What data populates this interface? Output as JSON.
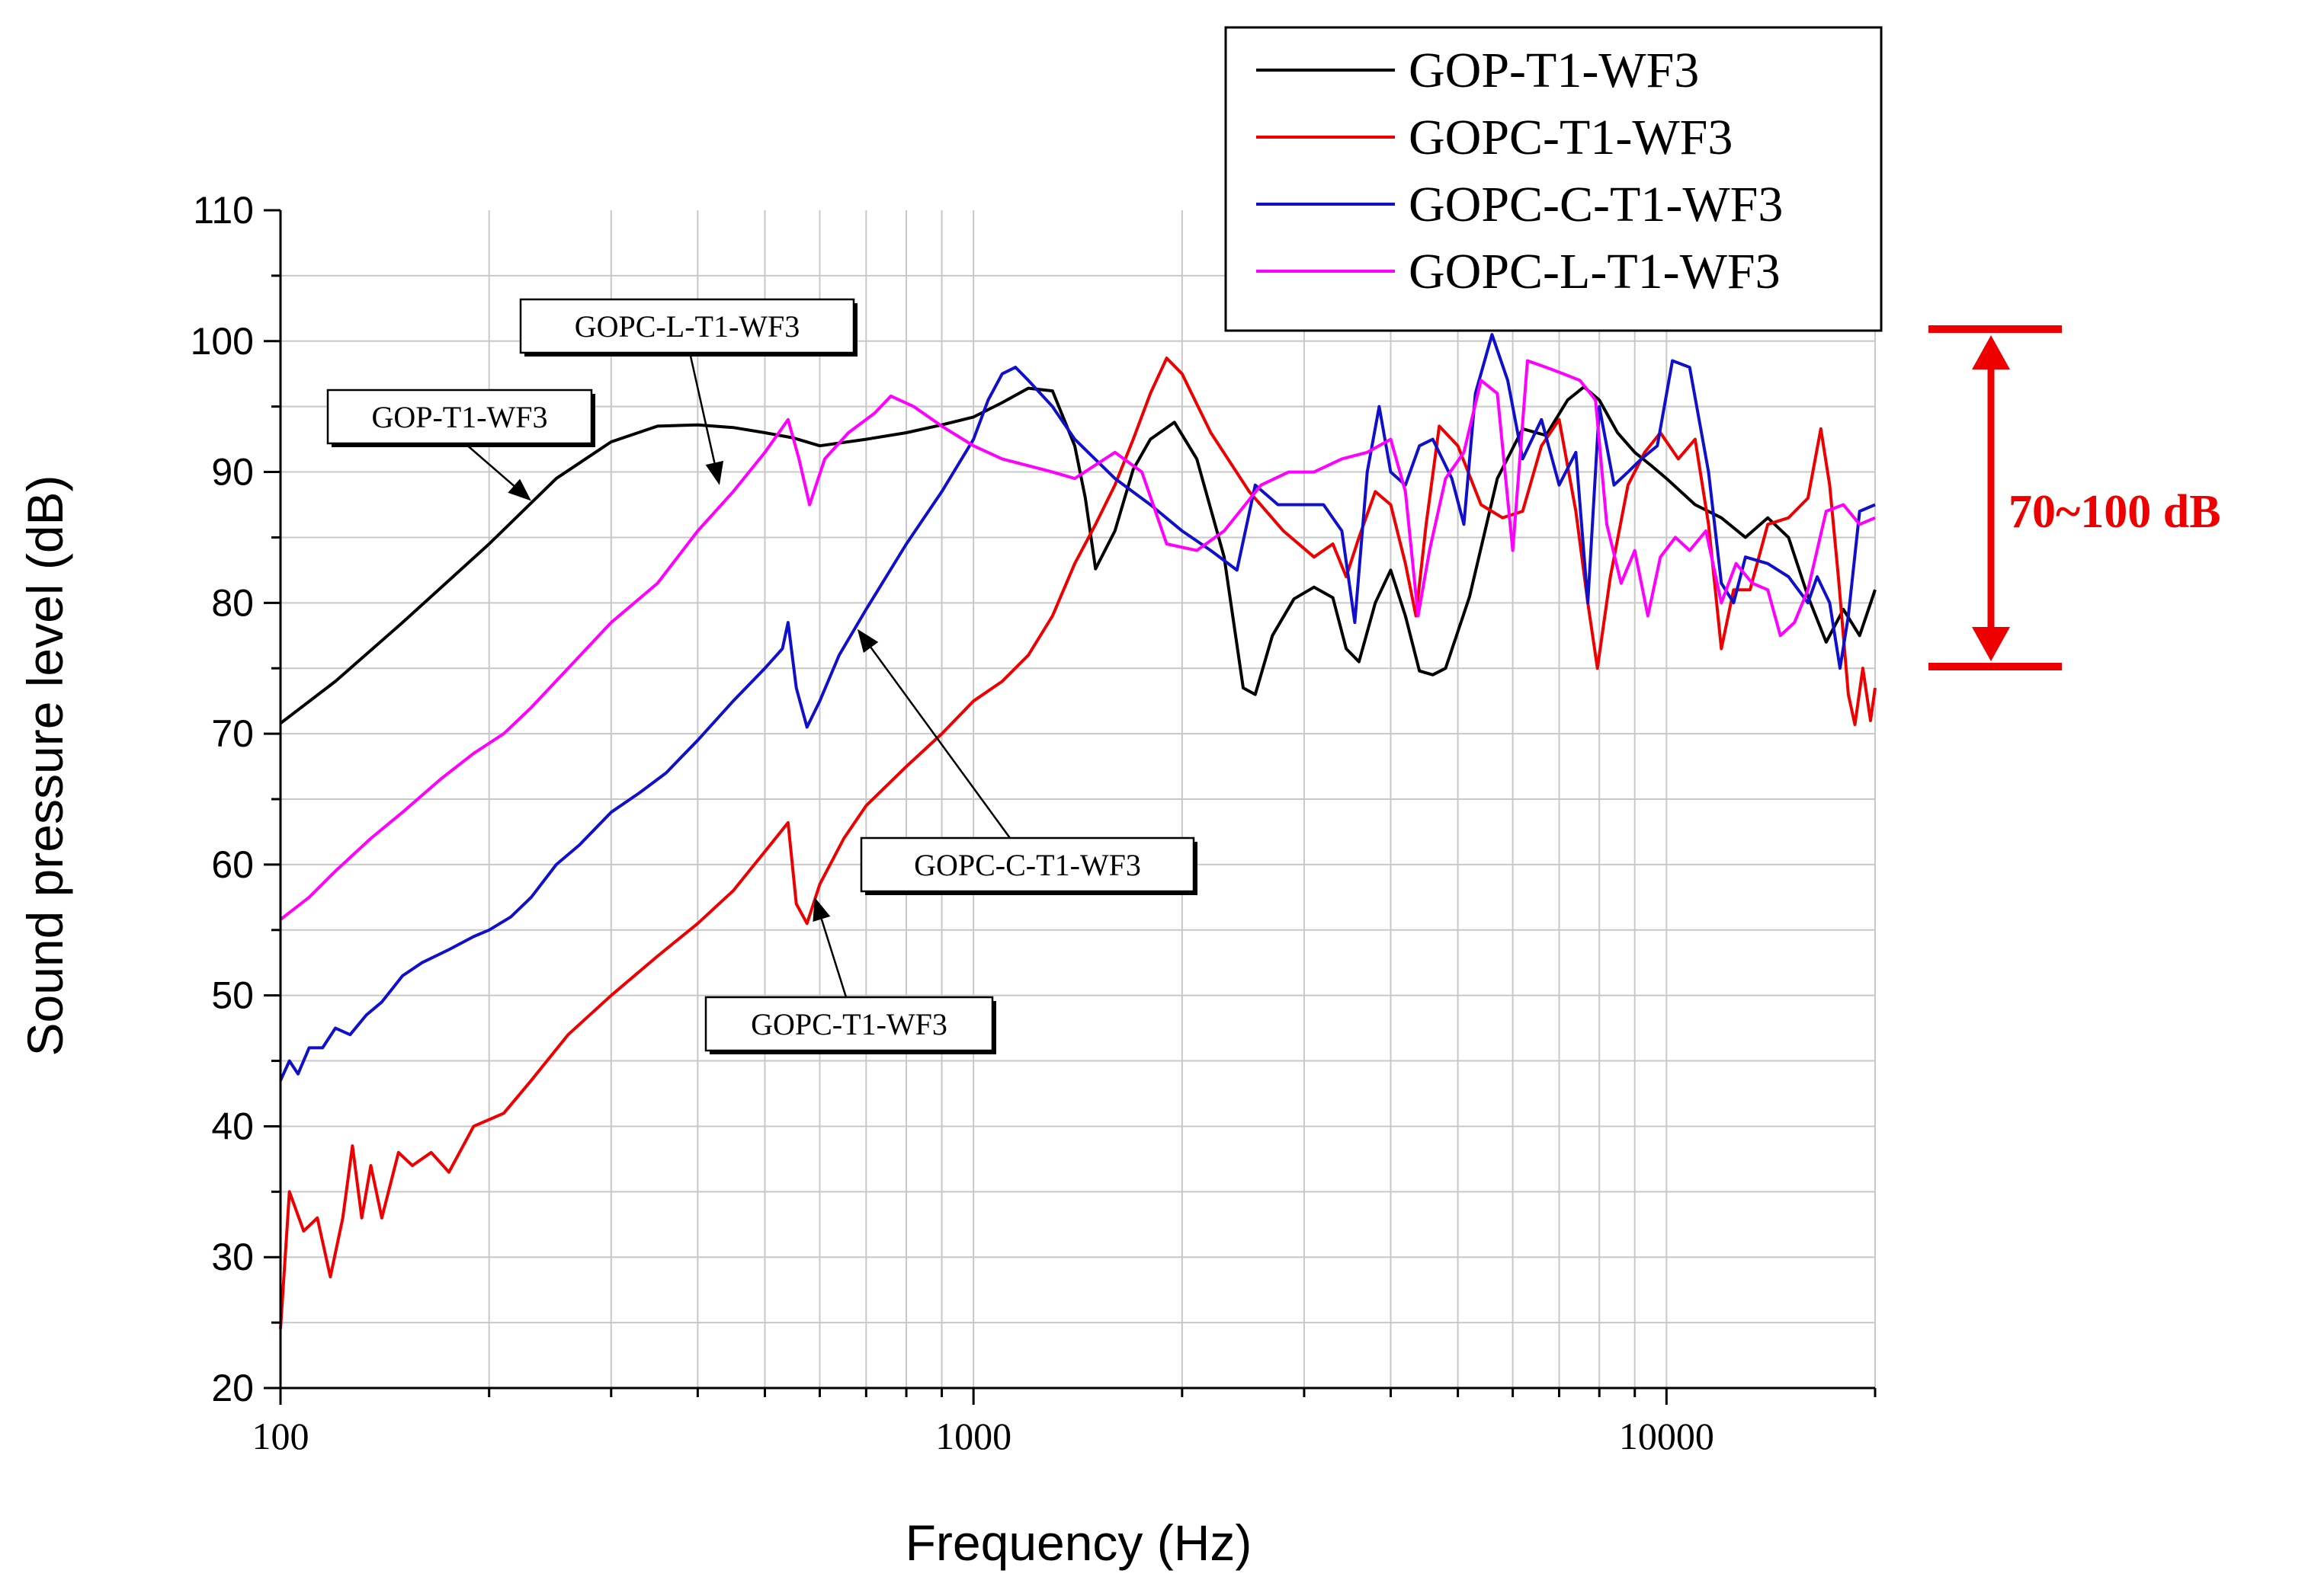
{
  "chart_data": {
    "type": "line",
    "xlabel": "Frequency (Hz)",
    "ylabel": "Sound pressure level (dB)",
    "xscale": "log",
    "xlim": [
      100,
      20000
    ],
    "ylim": [
      20,
      110
    ],
    "xticks": [
      "100",
      "1000",
      "10000"
    ],
    "yticks": [
      "20",
      "30",
      "40",
      "50",
      "60",
      "70",
      "80",
      "90",
      "100",
      "110"
    ],
    "grid": true,
    "legend_position": "top-right",
    "series": [
      {
        "name": "GOP-T1-WF3",
        "color": "#000000",
        "points": [
          [
            100,
            70.8
          ],
          [
            120,
            74
          ],
          [
            150,
            78.5
          ],
          [
            200,
            84.5
          ],
          [
            250,
            89.5
          ],
          [
            300,
            92.3
          ],
          [
            350,
            93.5
          ],
          [
            400,
            93.6
          ],
          [
            450,
            93.4
          ],
          [
            500,
            93
          ],
          [
            550,
            92.6
          ],
          [
            600,
            92
          ],
          [
            700,
            92.5
          ],
          [
            800,
            93
          ],
          [
            900,
            93.6
          ],
          [
            1000,
            94.2
          ],
          [
            1100,
            95.3
          ],
          [
            1200,
            96.4
          ],
          [
            1300,
            96.2
          ],
          [
            1400,
            92
          ],
          [
            1450,
            88
          ],
          [
            1500,
            82.6
          ],
          [
            1600,
            85.5
          ],
          [
            1700,
            90.2
          ],
          [
            1800,
            92.5
          ],
          [
            1950,
            93.8
          ],
          [
            2100,
            91
          ],
          [
            2300,
            83.5
          ],
          [
            2450,
            73.5
          ],
          [
            2550,
            73
          ],
          [
            2700,
            77.5
          ],
          [
            2900,
            80.3
          ],
          [
            3100,
            81.2
          ],
          [
            3300,
            80.4
          ],
          [
            3450,
            76.5
          ],
          [
            3600,
            75.5
          ],
          [
            3800,
            80
          ],
          [
            4000,
            82.5
          ],
          [
            4200,
            79
          ],
          [
            4400,
            74.8
          ],
          [
            4600,
            74.5
          ],
          [
            4800,
            75
          ],
          [
            5200,
            80.5
          ],
          [
            5700,
            89.5
          ],
          [
            6200,
            93.3
          ],
          [
            6700,
            92.8
          ],
          [
            7200,
            95.5
          ],
          [
            7600,
            96.5
          ],
          [
            8000,
            95.5
          ],
          [
            8500,
            93
          ],
          [
            9000,
            91.5
          ],
          [
            9500,
            90.5
          ],
          [
            10000,
            89.5
          ],
          [
            11000,
            87.5
          ],
          [
            12000,
            86.5
          ],
          [
            13000,
            85
          ],
          [
            14000,
            86.5
          ],
          [
            15000,
            85
          ],
          [
            16000,
            80.5
          ],
          [
            17000,
            77
          ],
          [
            18000,
            79.5
          ],
          [
            19000,
            77.5
          ],
          [
            20000,
            81
          ]
        ]
      },
      {
        "name": "GOPC-T1-WF3",
        "color": "#ee0000",
        "points": [
          [
            100,
            24.5
          ],
          [
            103,
            35
          ],
          [
            108,
            32
          ],
          [
            113,
            33
          ],
          [
            118,
            28.5
          ],
          [
            123,
            33
          ],
          [
            127,
            38.5
          ],
          [
            131,
            33
          ],
          [
            135,
            37
          ],
          [
            140,
            33
          ],
          [
            148,
            38
          ],
          [
            155,
            37
          ],
          [
            165,
            38
          ],
          [
            175,
            36.5
          ],
          [
            190,
            40
          ],
          [
            210,
            41
          ],
          [
            230,
            43.5
          ],
          [
            260,
            47
          ],
          [
            300,
            50
          ],
          [
            350,
            53
          ],
          [
            400,
            55.5
          ],
          [
            450,
            58
          ],
          [
            500,
            61
          ],
          [
            540,
            63.2
          ],
          [
            555,
            57
          ],
          [
            575,
            55.5
          ],
          [
            600,
            58.5
          ],
          [
            650,
            62
          ],
          [
            700,
            64.5
          ],
          [
            800,
            67.5
          ],
          [
            900,
            70
          ],
          [
            1000,
            72.5
          ],
          [
            1100,
            74
          ],
          [
            1200,
            76
          ],
          [
            1300,
            79
          ],
          [
            1400,
            83
          ],
          [
            1500,
            86
          ],
          [
            1600,
            89
          ],
          [
            1700,
            92.5
          ],
          [
            1800,
            96
          ],
          [
            1900,
            98.7
          ],
          [
            2000,
            97.5
          ],
          [
            2200,
            93
          ],
          [
            2500,
            88.5
          ],
          [
            2800,
            85.5
          ],
          [
            3100,
            83.5
          ],
          [
            3300,
            84.5
          ],
          [
            3450,
            82
          ],
          [
            3600,
            85
          ],
          [
            3800,
            88.5
          ],
          [
            4000,
            87.5
          ],
          [
            4200,
            83
          ],
          [
            4350,
            79
          ],
          [
            4500,
            86
          ],
          [
            4700,
            93.5
          ],
          [
            5000,
            92
          ],
          [
            5400,
            87.5
          ],
          [
            5800,
            86.5
          ],
          [
            6200,
            87
          ],
          [
            6600,
            92
          ],
          [
            7000,
            94
          ],
          [
            7400,
            87
          ],
          [
            7700,
            80
          ],
          [
            7950,
            75
          ],
          [
            8300,
            82
          ],
          [
            8800,
            89
          ],
          [
            9300,
            91.5
          ],
          [
            9800,
            93
          ],
          [
            10400,
            91
          ],
          [
            11000,
            92.5
          ],
          [
            11500,
            86
          ],
          [
            12000,
            76.5
          ],
          [
            12500,
            81
          ],
          [
            13200,
            81
          ],
          [
            14000,
            86
          ],
          [
            15000,
            86.5
          ],
          [
            16000,
            88
          ],
          [
            16700,
            93.3
          ],
          [
            17200,
            89
          ],
          [
            17700,
            82
          ],
          [
            18300,
            73
          ],
          [
            18700,
            70.7
          ],
          [
            19200,
            75
          ],
          [
            19700,
            71
          ],
          [
            20000,
            73.5
          ]
        ]
      },
      {
        "name": "GOPC-C-T1-WF3",
        "color": "#1010cc",
        "points": [
          [
            100,
            43.5
          ],
          [
            103,
            45
          ],
          [
            106,
            44
          ],
          [
            110,
            46
          ],
          [
            115,
            46
          ],
          [
            120,
            47.5
          ],
          [
            126,
            47
          ],
          [
            133,
            48.5
          ],
          [
            140,
            49.5
          ],
          [
            150,
            51.5
          ],
          [
            160,
            52.5
          ],
          [
            175,
            53.5
          ],
          [
            190,
            54.5
          ],
          [
            200,
            55
          ],
          [
            215,
            56
          ],
          [
            230,
            57.5
          ],
          [
            250,
            60
          ],
          [
            270,
            61.5
          ],
          [
            300,
            64
          ],
          [
            330,
            65.5
          ],
          [
            360,
            67
          ],
          [
            400,
            69.5
          ],
          [
            450,
            72.5
          ],
          [
            500,
            75
          ],
          [
            530,
            76.5
          ],
          [
            540,
            78.5
          ],
          [
            555,
            73.5
          ],
          [
            575,
            70.5
          ],
          [
            600,
            72.5
          ],
          [
            640,
            76
          ],
          [
            700,
            79.5
          ],
          [
            800,
            84.5
          ],
          [
            900,
            88.5
          ],
          [
            1000,
            92.5
          ],
          [
            1050,
            95.5
          ],
          [
            1100,
            97.5
          ],
          [
            1150,
            98
          ],
          [
            1200,
            97
          ],
          [
            1300,
            95
          ],
          [
            1400,
            92.5
          ],
          [
            1600,
            89.5
          ],
          [
            1800,
            87.5
          ],
          [
            2000,
            85.5
          ],
          [
            2200,
            84
          ],
          [
            2400,
            82.5
          ],
          [
            2550,
            89
          ],
          [
            2750,
            87.5
          ],
          [
            3000,
            87.5
          ],
          [
            3200,
            87.5
          ],
          [
            3400,
            85.5
          ],
          [
            3550,
            78.5
          ],
          [
            3700,
            90
          ],
          [
            3850,
            95
          ],
          [
            4000,
            90
          ],
          [
            4200,
            89
          ],
          [
            4400,
            92
          ],
          [
            4600,
            92.5
          ],
          [
            4900,
            89.5
          ],
          [
            5100,
            86
          ],
          [
            5300,
            96
          ],
          [
            5600,
            100.5
          ],
          [
            5900,
            97
          ],
          [
            6200,
            91
          ],
          [
            6600,
            94
          ],
          [
            7000,
            89
          ],
          [
            7400,
            91.5
          ],
          [
            7700,
            80
          ],
          [
            8000,
            95
          ],
          [
            8400,
            89
          ],
          [
            8800,
            90
          ],
          [
            9200,
            91
          ],
          [
            9700,
            92
          ],
          [
            10200,
            98.5
          ],
          [
            10800,
            98
          ],
          [
            11500,
            90
          ],
          [
            12000,
            81.5
          ],
          [
            12500,
            80
          ],
          [
            13000,
            83.5
          ],
          [
            14000,
            83
          ],
          [
            15000,
            82
          ],
          [
            16000,
            80
          ],
          [
            16500,
            82
          ],
          [
            17200,
            80
          ],
          [
            17800,
            75
          ],
          [
            18300,
            79
          ],
          [
            19000,
            87
          ],
          [
            20000,
            87.5
          ]
        ]
      },
      {
        "name": "GOPC-L-T1-WF3",
        "color": "#ff00ff",
        "points": [
          [
            100,
            55.8
          ],
          [
            110,
            57.5
          ],
          [
            120,
            59.5
          ],
          [
            135,
            62
          ],
          [
            150,
            64
          ],
          [
            170,
            66.5
          ],
          [
            190,
            68.5
          ],
          [
            210,
            70
          ],
          [
            230,
            72
          ],
          [
            260,
            75
          ],
          [
            300,
            78.5
          ],
          [
            350,
            81.5
          ],
          [
            400,
            85.5
          ],
          [
            450,
            88.5
          ],
          [
            500,
            91.5
          ],
          [
            540,
            94
          ],
          [
            560,
            91
          ],
          [
            580,
            87.5
          ],
          [
            610,
            91
          ],
          [
            660,
            93
          ],
          [
            720,
            94.5
          ],
          [
            760,
            95.8
          ],
          [
            820,
            95
          ],
          [
            900,
            93.5
          ],
          [
            1000,
            92
          ],
          [
            1100,
            91
          ],
          [
            1300,
            90
          ],
          [
            1400,
            89.5
          ],
          [
            1600,
            91.5
          ],
          [
            1750,
            90
          ],
          [
            1900,
            84.5
          ],
          [
            2100,
            84
          ],
          [
            2300,
            85.5
          ],
          [
            2600,
            89
          ],
          [
            2850,
            90
          ],
          [
            3100,
            90
          ],
          [
            3400,
            91
          ],
          [
            3700,
            91.5
          ],
          [
            4000,
            92.5
          ],
          [
            4200,
            88.5
          ],
          [
            4380,
            79
          ],
          [
            4550,
            84
          ],
          [
            4800,
            89.5
          ],
          [
            5100,
            91.5
          ],
          [
            5400,
            97
          ],
          [
            5700,
            96
          ],
          [
            6000,
            84
          ],
          [
            6300,
            98.5
          ],
          [
            6700,
            98
          ],
          [
            7100,
            97.5
          ],
          [
            7500,
            97
          ],
          [
            7900,
            95.5
          ],
          [
            8200,
            86
          ],
          [
            8600,
            81.5
          ],
          [
            9000,
            84
          ],
          [
            9400,
            79
          ],
          [
            9800,
            83.5
          ],
          [
            10300,
            85
          ],
          [
            10800,
            84
          ],
          [
            11400,
            85.5
          ],
          [
            12000,
            80
          ],
          [
            12600,
            83
          ],
          [
            13300,
            81.5
          ],
          [
            14000,
            81
          ],
          [
            14600,
            77.5
          ],
          [
            15300,
            78.5
          ],
          [
            16000,
            81
          ],
          [
            17000,
            87
          ],
          [
            18000,
            87.5
          ],
          [
            19000,
            86
          ],
          [
            20000,
            86.5
          ]
        ]
      }
    ]
  },
  "legend": {
    "items": [
      {
        "label": "GOP-T1-WF3",
        "color": "#000000"
      },
      {
        "label": "GOPC-T1-WF3",
        "color": "#ee0000"
      },
      {
        "label": "GOPC-C-T1-WF3",
        "color": "#1010cc"
      },
      {
        "label": "GOPC-L-T1-WF3",
        "color": "#ff00ff"
      }
    ]
  },
  "annotations": [
    {
      "label": "GOP-T1-WF3",
      "target": [
        230,
        87.8
      ]
    },
    {
      "label": "GOPC-L-T1-WF3",
      "target": [
        430,
        89
      ]
    },
    {
      "label": "GOPC-C-T1-WF3",
      "target": [
        680,
        78
      ]
    },
    {
      "label": "GOPC-T1-WF3",
      "target": [
        590,
        57.5
      ]
    }
  ],
  "range_annotation": {
    "label": "70~100 dB",
    "color": "#ee0000"
  }
}
